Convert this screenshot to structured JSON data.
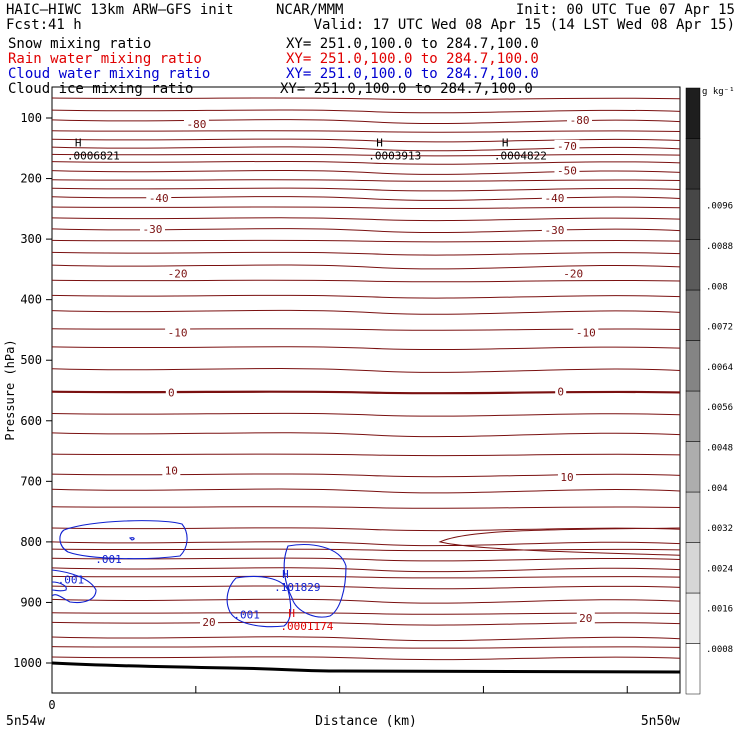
{
  "header": {
    "left_line1": "HAIC–HIWC 13km ARW–GFS init",
    "center_line1": "NCAR/MMM",
    "right_line1": "Init: 00 UTC Tue 07 Apr 15",
    "fcst_label": "Fcst:",
    "fcst_value": "41 h",
    "valid": "Valid: 17 UTC Wed 08 Apr 15 (14 LST Wed 08 Apr 15)",
    "fields": [
      {
        "name": "Snow mixing ratio",
        "xy": "XY= 251.0,100.0 to 284.7,100.0",
        "color": "#000000"
      },
      {
        "name": "Rain water mixing ratio",
        "xy": "XY= 251.0,100.0 to 284.7,100.0",
        "color": "#e00000"
      },
      {
        "name": "Cloud water mixing ratio",
        "xy": "XY= 251.0,100.0 to 284.7,100.0",
        "color": "#0000d0"
      },
      {
        "name": "Cloud ice mixing ratio",
        "xy": "XY= 251.0,100.0 to 284.7,100.0",
        "color": "#000000"
      }
    ]
  },
  "colors": {
    "temperature": "#7a1010",
    "cloud_water": "#1020d0",
    "rain": "#e00000",
    "text": "#000000"
  },
  "chart_data": {
    "type": "cross-section",
    "ylabel": "Pressure (hPa)",
    "xlabel": "Distance (km)",
    "yticks": [
      100,
      200,
      300,
      400,
      500,
      600,
      700,
      800,
      900,
      1000
    ],
    "ylim": [
      1050,
      50
    ],
    "xlim": [
      0,
      1
    ],
    "x_zero_label": "0",
    "x_left_label": "5n54w",
    "x_right_label": "5n50w",
    "colorbar": {
      "unit": "g kg⁻¹",
      "ticks": [
        ".0008",
        ".0016",
        ".0024",
        ".0032",
        ".004",
        ".0048",
        ".0056",
        ".0064",
        ".0072",
        ".008",
        ".0088",
        ".0096"
      ]
    },
    "isotherm_pressures": [
      67,
      87,
      103,
      121,
      135,
      148,
      160,
      172,
      187,
      202,
      216,
      230,
      247,
      265,
      283,
      302,
      322,
      343,
      368,
      393,
      418,
      448,
      478,
      514,
      552,
      588,
      620,
      655,
      688,
      713,
      742,
      777,
      800,
      812,
      827,
      843,
      857,
      873,
      895,
      917,
      933,
      957,
      973,
      990
    ],
    "isotherm_labels": [
      {
        "text": "-80",
        "x": 0.23,
        "p": 110
      },
      {
        "text": "-80",
        "x": 0.84,
        "p": 103
      },
      {
        "text": "-70",
        "x": 0.82,
        "p": 146
      },
      {
        "text": "-50",
        "x": 0.82,
        "p": 187
      },
      {
        "text": "-40",
        "x": 0.17,
        "p": 232
      },
      {
        "text": "-40",
        "x": 0.8,
        "p": 232
      },
      {
        "text": "-30",
        "x": 0.16,
        "p": 283
      },
      {
        "text": "-30",
        "x": 0.8,
        "p": 285
      },
      {
        "text": "-20",
        "x": 0.2,
        "p": 357
      },
      {
        "text": "-20",
        "x": 0.83,
        "p": 357
      },
      {
        "text": "-10",
        "x": 0.2,
        "p": 454
      },
      {
        "text": "-10",
        "x": 0.85,
        "p": 454
      },
      {
        "text": "0",
        "x": 0.19,
        "p": 553
      },
      {
        "text": "0",
        "x": 0.81,
        "p": 552
      },
      {
        "text": "10",
        "x": 0.19,
        "p": 682
      },
      {
        "text": "10",
        "x": 0.82,
        "p": 693
      },
      {
        "text": "20",
        "x": 0.25,
        "p": 932
      },
      {
        "text": "20",
        "x": 0.85,
        "p": 926
      }
    ],
    "maxima": [
      {
        "symbol": "H",
        "value": ".0006821",
        "x": 0.03,
        "p": 155,
        "color": "#000000"
      },
      {
        "symbol": "H",
        "value": ".0003913",
        "x": 0.51,
        "p": 155,
        "color": "#000000"
      },
      {
        "symbol": "H",
        "value": ".0004822",
        "x": 0.71,
        "p": 155,
        "color": "#000000"
      },
      {
        "symbol": "H",
        "value": ".101829",
        "x": 0.36,
        "p": 868,
        "color": "#1020d0"
      },
      {
        "symbol": "H",
        "value": ".0001174",
        "x": 0.37,
        "p": 932,
        "color": "#e00000"
      }
    ],
    "cloud_labels": [
      {
        "text": ".001",
        "x": 0.09,
        "p": 828
      },
      {
        "text": ".001",
        "x": 0.03,
        "p": 862
      },
      {
        "text": ".001",
        "x": 0.31,
        "p": 920
      }
    ]
  }
}
